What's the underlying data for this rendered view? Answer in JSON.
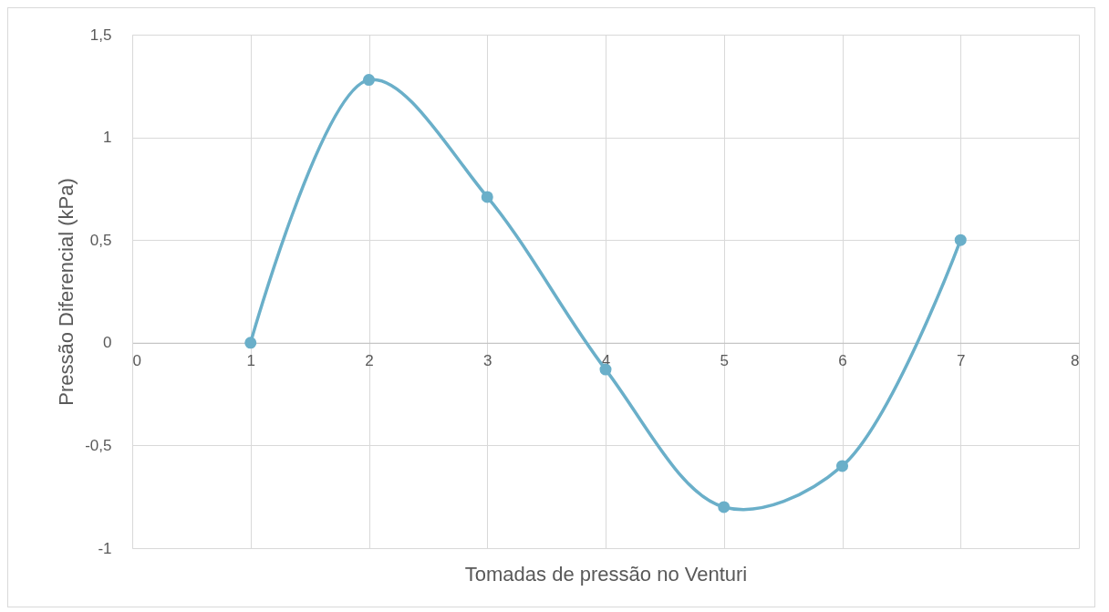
{
  "chart_data": {
    "type": "line",
    "xlabel": "Tomadas de pressão no Venturi",
    "ylabel": "Pressão Diferencial (kPa)",
    "x": [
      1,
      2,
      3,
      4,
      5,
      6,
      7
    ],
    "series": [
      {
        "color": "#6aafc9",
        "values": [
          0,
          1.28,
          0.71,
          -0.13,
          -0.8,
          -0.6,
          0.5
        ]
      }
    ],
    "xlim": [
      0,
      8
    ],
    "xticks": [
      0,
      1,
      2,
      3,
      4,
      5,
      6,
      7,
      8
    ],
    "ylim": [
      -1,
      1.5
    ],
    "yticks": [
      -1,
      {
        "value": -0.5,
        "label": "-0,5"
      },
      0,
      {
        "value": 0.5,
        "label": "0,5"
      },
      1,
      {
        "value": 1.5,
        "label": "1,5"
      }
    ],
    "grid": true,
    "marker": "circle",
    "line_style": "solid"
  }
}
